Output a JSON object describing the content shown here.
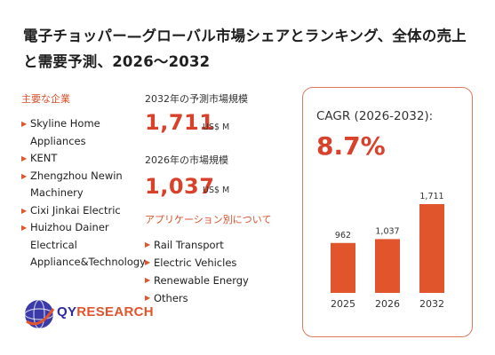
{
  "title": "電子チョッパー—グローバル市場シェアとランキング、全体の売上と需要予測、2026～2032",
  "companies": {
    "label": "主要な企業",
    "items": [
      "Skyline Home Appliances",
      "KENT",
      "Zhengzhou Newin Machinery",
      "Cixi Jinkai Electric",
      "Huizhou Dainer Electrical Appliance&Technology"
    ]
  },
  "forecast_2032": {
    "label": "2032年の予測市場規模",
    "value": "1,711",
    "unit": "US$ M"
  },
  "market_2026": {
    "label": "2026年の市場規模",
    "value": "1,037",
    "unit": "US$ M"
  },
  "applications": {
    "label": "アプリケーション別について",
    "items": [
      "Rail Transport",
      "Electric Vehicles",
      "Renewable Energy",
      "Others"
    ]
  },
  "cagr": {
    "label": "CAGR (2026-2032):",
    "value": "8.7%"
  },
  "logo": {
    "text_a": "QY",
    "text_b": "RESEARCH"
  },
  "colors": {
    "accent": "#d9412a",
    "bar": "#e0552b",
    "border": "#e07a5f",
    "logo_blue": "#2b2b9c"
  },
  "chart_data": {
    "type": "bar",
    "categories": [
      "2025",
      "2026",
      "2032"
    ],
    "values": [
      962,
      1037,
      1711
    ],
    "data_labels": [
      "962",
      "1,037",
      "1,711"
    ],
    "ylim": [
      0,
      1711
    ],
    "grid": false
  }
}
